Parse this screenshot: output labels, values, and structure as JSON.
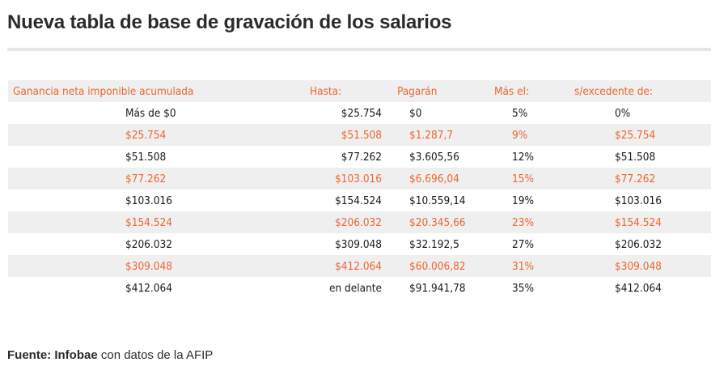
{
  "title": "Nueva tabla de base de gravación de los salarios",
  "table": {
    "headers": [
      "Ganancia neta imponible acumulada",
      "Hasta:",
      "Pagarán",
      "Más el:",
      "s/excedente de:"
    ],
    "rows": [
      [
        "Más de $0",
        "$25.754",
        "$0",
        "5%",
        "0%"
      ],
      [
        "$25.754",
        "$51.508",
        "$1.287,7",
        "9%",
        "$25.754"
      ],
      [
        "$51.508",
        "$77.262",
        "$3.605,56",
        "12%",
        "$51.508"
      ],
      [
        "$77.262",
        "$103.016",
        "$6.696,04",
        "15%",
        "$77.262"
      ],
      [
        "$103.016",
        "$154.524",
        "$10.559,14",
        "19%",
        "$103.016"
      ],
      [
        "$154.524",
        "$206.032",
        "$20.345,66",
        "23%",
        "$154.524"
      ],
      [
        "$206.032",
        "$309.048",
        "$32.192,5",
        "27%",
        "$206.032"
      ],
      [
        "$309.048",
        "$412.064",
        "$60.006,82",
        "31%",
        "$309.048"
      ],
      [
        "$412.064",
        "en delante",
        "$91.941,78",
        "35%",
        "$412.064"
      ]
    ]
  },
  "source": {
    "label": "Fuente:",
    "outlet": "Infobae",
    "rest": "con datos de la AFIP"
  },
  "colors": {
    "accent": "#ee6633",
    "stripe": "#efefef",
    "text": "#1a1a1a"
  }
}
